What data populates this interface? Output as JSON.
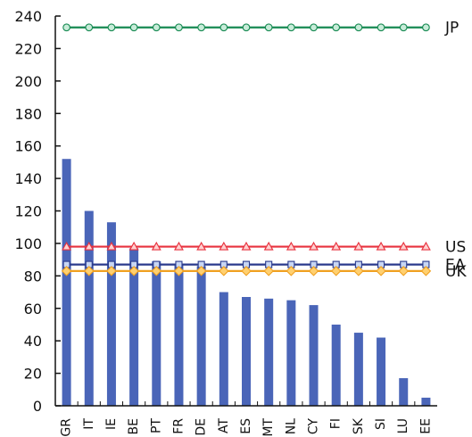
{
  "chart_data": {
    "type": "bar",
    "categories": [
      "GR",
      "IT",
      "IE",
      "BE",
      "PT",
      "FR",
      "DE",
      "AT",
      "ES",
      "MT",
      "NL",
      "CY",
      "FI",
      "SK",
      "SI",
      "LU",
      "EE"
    ],
    "bar_series": {
      "values": [
        152,
        120,
        113,
        97,
        89,
        87,
        86,
        70,
        67,
        66,
        65,
        62,
        50,
        45,
        42,
        17,
        5
      ],
      "color": "#4a65b8"
    },
    "reference_lines": [
      {
        "name": "JP",
        "value": 233,
        "color": "#178a52",
        "marker": "circle",
        "marker_fill": "#c8ecd9"
      },
      {
        "name": "US",
        "value": 98,
        "color": "#e8323e",
        "marker": "triangle",
        "marker_fill": "#ffd0d0"
      },
      {
        "name": "EA",
        "value": 87,
        "color": "#2a3a8c",
        "marker": "square",
        "marker_fill": "#c8d6f4"
      },
      {
        "name": "UK",
        "value": 83,
        "color": "#f0a020",
        "marker": "diamond",
        "marker_fill": "#ffd070"
      }
    ],
    "ylim": [
      0,
      240
    ],
    "yticks": [
      0,
      20,
      40,
      60,
      80,
      100,
      120,
      140,
      160,
      180,
      200,
      220,
      240
    ],
    "title": "",
    "xlabel": "",
    "ylabel": "",
    "grid": false,
    "legend": "line-end labels at right"
  }
}
